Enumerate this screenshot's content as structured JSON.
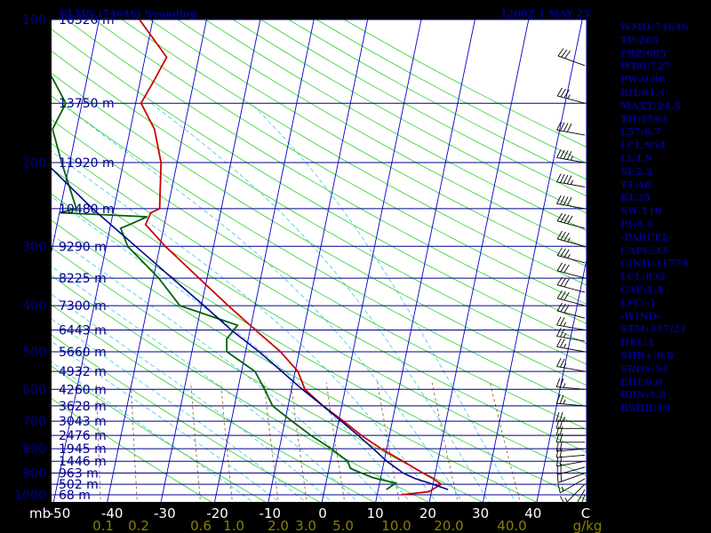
{
  "header": {
    "station": "KLMN (74646) Sounding",
    "time_date": "1200Z  1 MAY 25"
  },
  "indices": [
    "WMO:74646",
    "TP:265",
    "FRZ:685",
    "WB0:727",
    "PW:0.88",
    "RH:64.4",
    "MAXT:24.5",
    "TH:5592",
    "L57:6.7",
    "LCL:954",
    "LI:1.9",
    "SI:2.2",
    "TT:48",
    "KI:25",
    "SW:110",
    "EI:0.1",
    "-PARCEL-",
    "CAPE:33",
    "CINH:31774",
    "LCL:832",
    "CAP:4.4",
    "LFC:-1",
    "-WIND-",
    "STM:337/21",
    "HEL:1",
    "SHR+:0.0",
    "SRDS:54",
    "EHI:0.0",
    "BRN:1.8",
    "BSHR:19"
  ],
  "colors": {
    "background": "#ffffff",
    "isobar": "#00008b",
    "isotherm": "#0000cd",
    "dry_adiabat": "#32cd32",
    "moist_adiabat": "#40c8e0",
    "mixing_ratio": "#8b5a2b",
    "temperature": "#cc0000",
    "dewpoint": "#006400",
    "parcel": "#00008b",
    "axis_text": "#00008b",
    "bottom_text": "#ffffff",
    "mixratio_text": "#8b8000",
    "wind_barb": "#000000"
  },
  "chart_data": {
    "type": "skew-t log-p",
    "y_axis": "pressure (mb)",
    "x_axis": "temperature (°C)",
    "log_pressure": true,
    "pressure_range": [
      1000,
      100
    ],
    "temperature_range": [
      -50,
      50
    ],
    "y_unit": "mb",
    "x_unit": "C",
    "mixing_ratio_unit": "g/kg",
    "pressure_ticks": [
      {
        "p": 100,
        "label": "100"
      },
      {
        "p": 200,
        "label": "200"
      },
      {
        "p": 300,
        "label": "300"
      },
      {
        "p": 400,
        "label": "400"
      },
      {
        "p": 500,
        "label": "500"
      },
      {
        "p": 600,
        "label": "600"
      },
      {
        "p": 700,
        "label": "700"
      },
      {
        "p": 800,
        "label": "800"
      },
      {
        "p": 900,
        "label": "900"
      },
      {
        "p": 1000,
        "label": "1000"
      }
    ],
    "height_labels": [
      {
        "p": 100,
        "label": "16320 m"
      },
      {
        "p": 150,
        "label": "13750 m"
      },
      {
        "p": 200,
        "label": "11920 m"
      },
      {
        "p": 250,
        "label": "10480 m"
      },
      {
        "p": 300,
        "label": "9290 m"
      },
      {
        "p": 350,
        "label": "8225 m"
      },
      {
        "p": 400,
        "label": "7300 m"
      },
      {
        "p": 450,
        "label": "6443 m"
      },
      {
        "p": 500,
        "label": "5660 m"
      },
      {
        "p": 550,
        "label": "4932 m"
      },
      {
        "p": 600,
        "label": "4260 m"
      },
      {
        "p": 650,
        "label": "3628 m"
      },
      {
        "p": 700,
        "label": "3043 m"
      },
      {
        "p": 750,
        "label": "2476 m"
      },
      {
        "p": 800,
        "label": "1945 m"
      },
      {
        "p": 850,
        "label": "1446 m"
      },
      {
        "p": 900,
        "label": "963 m"
      },
      {
        "p": 950,
        "label": "502 m"
      },
      {
        "p": 1000,
        "label": "68 m"
      }
    ],
    "temperature_ticks": [
      "-50",
      "-40",
      "-30",
      "-20",
      "-10",
      "0",
      "10",
      "20",
      "30",
      "40",
      "C"
    ],
    "bottom_left_label": "mb",
    "mixing_ratio_ticks": [
      "0.1",
      "0.2",
      "0.6",
      "1.0",
      "2.0",
      "3.0",
      "5.0",
      "10.0",
      "20.0",
      "40.0",
      "g/kg"
    ],
    "isotherms_C": [
      -120,
      -110,
      -100,
      -90,
      -80,
      -70,
      -60,
      -50,
      -40,
      -30,
      -20,
      -10,
      0,
      10,
      20,
      30,
      40
    ],
    "dry_adiabats_K": [
      250,
      260,
      270,
      280,
      290,
      300,
      310,
      320,
      330,
      340,
      350,
      360,
      370,
      380,
      390,
      400,
      410,
      420,
      430,
      440,
      450,
      460,
      470,
      480,
      490,
      500
    ],
    "moist_adiabats_C": [
      -15,
      -10,
      -5,
      0,
      5,
      10,
      15,
      20,
      25,
      30,
      35
    ],
    "mixing_ratio_lines": [
      0.1,
      0.2,
      0.6,
      1,
      2,
      3,
      5,
      10,
      20,
      40
    ],
    "series": [
      {
        "kind": "temperature",
        "points": [
          {
            "p": 1000,
            "t": 14.5
          },
          {
            "p": 985,
            "t": 19.5
          },
          {
            "p": 950,
            "t": 21.5
          },
          {
            "p": 925,
            "t": 19.8
          },
          {
            "p": 900,
            "t": 17.7
          },
          {
            "p": 850,
            "t": 13.5
          },
          {
            "p": 800,
            "t": 9.0
          },
          {
            "p": 750,
            "t": 4.8
          },
          {
            "p": 700,
            "t": 0.9
          },
          {
            "p": 650,
            "t": -3.5
          },
          {
            "p": 600,
            "t": -7.5
          },
          {
            "p": 550,
            "t": -9.5
          },
          {
            "p": 500,
            "t": -13.5
          },
          {
            "p": 450,
            "t": -19.0
          },
          {
            "p": 400,
            "t": -25.0
          },
          {
            "p": 350,
            "t": -31.5
          },
          {
            "p": 300,
            "t": -39.0
          },
          {
            "p": 270,
            "t": -43.5
          },
          {
            "p": 255,
            "t": -43.0
          },
          {
            "p": 250,
            "t": -41.5
          },
          {
            "p": 200,
            "t": -43.0
          },
          {
            "p": 170,
            "t": -45.5
          },
          {
            "p": 150,
            "t": -49.0
          },
          {
            "p": 135,
            "t": -47.5
          },
          {
            "p": 120,
            "t": -46.0
          },
          {
            "p": 100,
            "t": -52.5
          }
        ]
      },
      {
        "kind": "dewpoint",
        "points": [
          {
            "p": 975,
            "t": 11.5
          },
          {
            "p": 945,
            "t": 13.0
          },
          {
            "p": 920,
            "t": 8.5
          },
          {
            "p": 880,
            "t": 4.0
          },
          {
            "p": 850,
            "t": 3.2
          },
          {
            "p": 800,
            "t": -0.3
          },
          {
            "p": 750,
            "t": -4.6
          },
          {
            "p": 700,
            "t": -8.7
          },
          {
            "p": 650,
            "t": -12.9
          },
          {
            "p": 600,
            "t": -15.0
          },
          {
            "p": 550,
            "t": -17.5
          },
          {
            "p": 500,
            "t": -23.5
          },
          {
            "p": 470,
            "t": -24.0
          },
          {
            "p": 440,
            "t": -22.5
          },
          {
            "p": 400,
            "t": -34.0
          },
          {
            "p": 350,
            "t": -39.0
          },
          {
            "p": 300,
            "t": -46.0
          },
          {
            "p": 275,
            "t": -48.0
          },
          {
            "p": 270,
            "t": -46.5
          },
          {
            "p": 260,
            "t": -43.5
          },
          {
            "p": 255,
            "t": -60.0
          },
          {
            "p": 250,
            "t": -57.0
          },
          {
            "p": 200,
            "t": -61.5
          },
          {
            "p": 170,
            "t": -64.5
          },
          {
            "p": 150,
            "t": -63.0
          },
          {
            "p": 135,
            "t": -66.0
          },
          {
            "p": 120,
            "t": -69.5
          },
          {
            "p": 100,
            "t": -73.5
          }
        ]
      },
      {
        "kind": "parcel",
        "points": [
          {
            "p": 975,
            "t": 23.0
          },
          {
            "p": 950,
            "t": 20.0
          },
          {
            "p": 925,
            "t": 16.5
          },
          {
            "p": 900,
            "t": 14.0
          },
          {
            "p": 850,
            "t": 10.5
          },
          {
            "p": 800,
            "t": 7.5
          },
          {
            "p": 750,
            "t": 4.2
          },
          {
            "p": 700,
            "t": 0.5
          },
          {
            "p": 650,
            "t": -3.5
          },
          {
            "p": 600,
            "t": -8.0
          },
          {
            "p": 550,
            "t": -12.5
          },
          {
            "p": 500,
            "t": -17.5
          },
          {
            "p": 450,
            "t": -23.5
          },
          {
            "p": 400,
            "t": -29.5
          },
          {
            "p": 350,
            "t": -36.5
          },
          {
            "p": 300,
            "t": -44.5
          },
          {
            "p": 250,
            "t": -54.0
          },
          {
            "p": 200,
            "t": -64.5
          },
          {
            "p": 170,
            "t": -71.5
          },
          {
            "p": 150,
            "t": -76.5
          },
          {
            "p": 135,
            "t": -80.5
          },
          {
            "p": 120,
            "t": -85.5
          }
        ]
      }
    ],
    "winds": [
      {
        "p": 1000,
        "dir": 200,
        "kt": 10
      },
      {
        "p": 975,
        "dir": 210,
        "kt": 10
      },
      {
        "p": 950,
        "dir": 225,
        "kt": 15
      },
      {
        "p": 925,
        "dir": 240,
        "kt": 15
      },
      {
        "p": 900,
        "dir": 250,
        "kt": 20
      },
      {
        "p": 875,
        "dir": 255,
        "kt": 20
      },
      {
        "p": 850,
        "dir": 260,
        "kt": 20
      },
      {
        "p": 825,
        "dir": 265,
        "kt": 20
      },
      {
        "p": 800,
        "dir": 265,
        "kt": 20
      },
      {
        "p": 775,
        "dir": 270,
        "kt": 20
      },
      {
        "p": 750,
        "dir": 270,
        "kt": 20
      },
      {
        "p": 725,
        "dir": 270,
        "kt": 20
      },
      {
        "p": 700,
        "dir": 270,
        "kt": 25
      },
      {
        "p": 650,
        "dir": 275,
        "kt": 25
      },
      {
        "p": 600,
        "dir": 275,
        "kt": 25
      },
      {
        "p": 550,
        "dir": 280,
        "kt": 25
      },
      {
        "p": 500,
        "dir": 280,
        "kt": 25
      },
      {
        "p": 475,
        "dir": 280,
        "kt": 25
      },
      {
        "p": 450,
        "dir": 280,
        "kt": 25
      },
      {
        "p": 425,
        "dir": 285,
        "kt": 30
      },
      {
        "p": 400,
        "dir": 285,
        "kt": 30
      },
      {
        "p": 375,
        "dir": 285,
        "kt": 30
      },
      {
        "p": 350,
        "dir": 285,
        "kt": 30
      },
      {
        "p": 325,
        "dir": 285,
        "kt": 35
      },
      {
        "p": 300,
        "dir": 285,
        "kt": 35
      },
      {
        "p": 275,
        "dir": 285,
        "kt": 40
      },
      {
        "p": 250,
        "dir": 280,
        "kt": 40
      },
      {
        "p": 225,
        "dir": 280,
        "kt": 45
      },
      {
        "p": 200,
        "dir": 280,
        "kt": 45
      },
      {
        "p": 175,
        "dir": 280,
        "kt": 40
      },
      {
        "p": 150,
        "dir": 285,
        "kt": 35
      },
      {
        "p": 125,
        "dir": 290,
        "kt": 30
      },
      {
        "p": 100,
        "dir": 290,
        "kt": 25
      }
    ]
  }
}
